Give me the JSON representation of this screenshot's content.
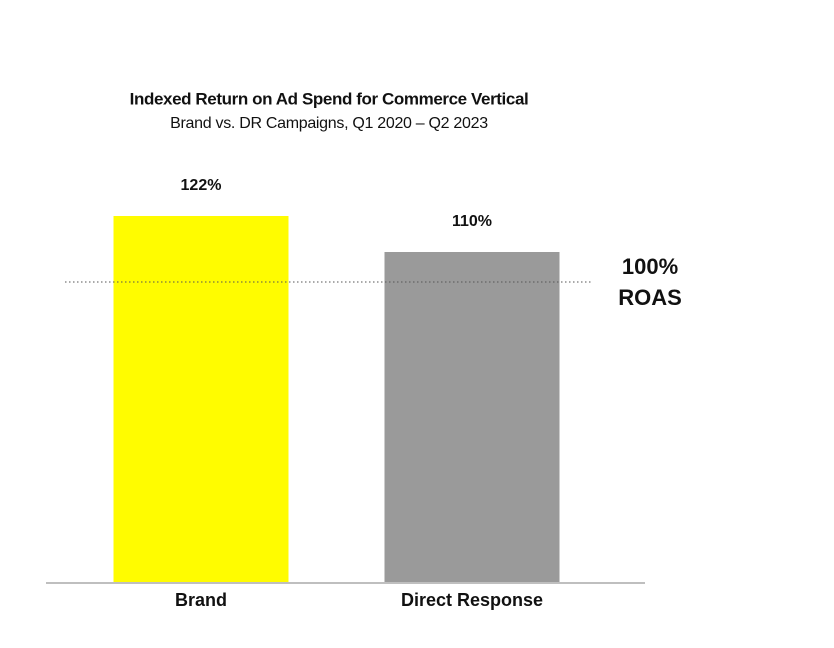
{
  "chart_data": {
    "type": "bar",
    "title": "Indexed Return on Ad Spend for Commerce Vertical",
    "subtitle": "Brand vs. DR Campaigns, Q1 2020 – Q2 2023",
    "categories": [
      "Brand",
      "Direct Response"
    ],
    "values": [
      122,
      110
    ],
    "value_labels": [
      "122%",
      "110%"
    ],
    "colors": [
      "#fffc00",
      "#9a9a9a"
    ],
    "ylim": [
      0,
      130
    ],
    "reference_line": {
      "value": 100,
      "label_lines": [
        "100%",
        "ROAS"
      ]
    }
  }
}
